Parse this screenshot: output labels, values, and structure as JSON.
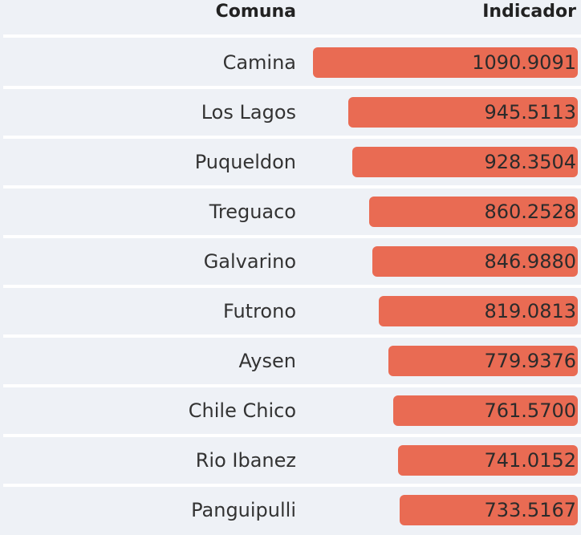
{
  "table": {
    "headers": {
      "comuna": "Comuna",
      "indicador": "Indicador"
    }
  },
  "chart_data": {
    "type": "table",
    "columns": [
      "Comuna",
      "Indicador"
    ],
    "categories": [
      "Camina",
      "Los Lagos",
      "Puqueldon",
      "Treguaco",
      "Galvarino",
      "Futrono",
      "Aysen",
      "Chile Chico",
      "Rio Ibanez",
      "Panguipulli"
    ],
    "values": [
      1090.9091,
      945.5113,
      928.3504,
      860.2528,
      846.988,
      819.0813,
      779.9376,
      761.57,
      741.0152,
      733.5167
    ],
    "value_labels": [
      "1090.9091",
      "945.5113",
      "928.3504",
      "860.2528",
      "846.9880",
      "819.0813",
      "779.9376",
      "761.5700",
      "741.0152",
      "733.5167"
    ],
    "bar_color": "#e96b53"
  }
}
